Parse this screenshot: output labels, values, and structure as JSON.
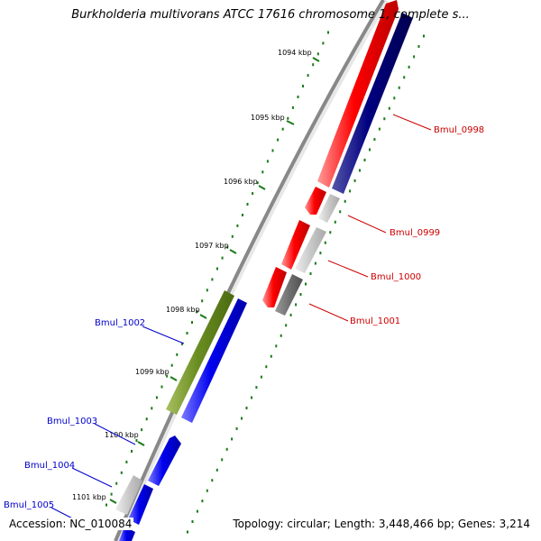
{
  "title": "Burkholderia multivorans ATCC 17616 chromosome 1, complete s...",
  "accession": "Accession: NC_010084",
  "summary": "Topology: circular; Length: 3,448,466 bp; Genes: 3,214",
  "ticks": [
    {
      "label": "1094 kbp"
    },
    {
      "label": "1095 kbp"
    },
    {
      "label": "1096 kbp"
    },
    {
      "label": "1097 kbp"
    },
    {
      "label": "1098 kbp"
    },
    {
      "label": "1099 kbp"
    },
    {
      "label": "1100 kbp"
    },
    {
      "label": "1101 kbp"
    }
  ],
  "genes_forward": [
    {
      "label": "Bmul_0998"
    },
    {
      "label": "Bmul_0999"
    },
    {
      "label": "Bmul_1000"
    },
    {
      "label": "Bmul_1001"
    }
  ],
  "genes_reverse": [
    {
      "label": "Bmul_1002"
    },
    {
      "label": "Bmul_1003"
    },
    {
      "label": "Bmul_1004"
    },
    {
      "label": "Bmul_1005"
    }
  ],
  "colors": {
    "forward_cds": "#ff0000",
    "reverse_cds": "#0000ee",
    "orf": "#000080",
    "other": "#c8c8c8",
    "dark_other": "#707070",
    "green_feature": "#6b8e23",
    "gc_ticks": "#1a7a1a",
    "backbone": "#888888"
  }
}
